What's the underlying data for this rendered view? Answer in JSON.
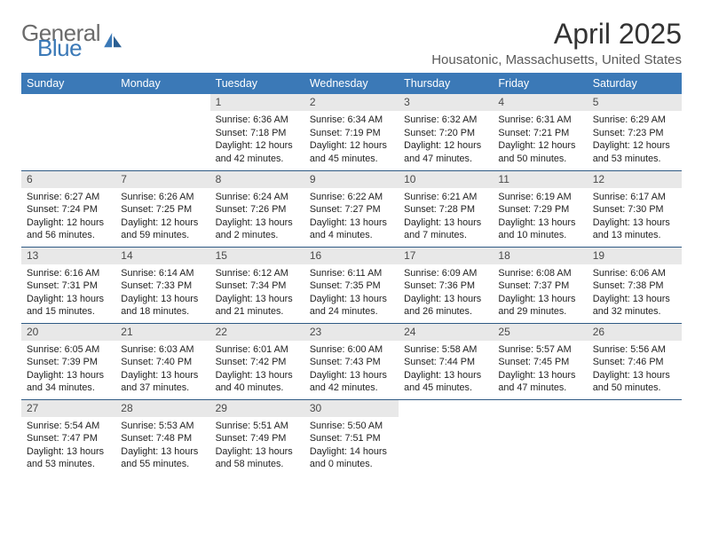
{
  "logo": {
    "text_top": "General",
    "text_bottom": "Blue",
    "gray": "#6b6b6b",
    "blue": "#3b79b7"
  },
  "title": "April 2025",
  "subtitle": "Housatonic, Massachusetts, United States",
  "colors": {
    "header_bg": "#3b79b7",
    "header_fg": "#ffffff",
    "daybar_bg": "#e8e8e8",
    "rule": "#2f5a84"
  },
  "weekdays": [
    "Sunday",
    "Monday",
    "Tuesday",
    "Wednesday",
    "Thursday",
    "Friday",
    "Saturday"
  ],
  "weeks": [
    [
      null,
      null,
      {
        "n": "1",
        "sr": "6:36 AM",
        "ss": "7:18 PM",
        "dl": "12 hours and 42 minutes."
      },
      {
        "n": "2",
        "sr": "6:34 AM",
        "ss": "7:19 PM",
        "dl": "12 hours and 45 minutes."
      },
      {
        "n": "3",
        "sr": "6:32 AM",
        "ss": "7:20 PM",
        "dl": "12 hours and 47 minutes."
      },
      {
        "n": "4",
        "sr": "6:31 AM",
        "ss": "7:21 PM",
        "dl": "12 hours and 50 minutes."
      },
      {
        "n": "5",
        "sr": "6:29 AM",
        "ss": "7:23 PM",
        "dl": "12 hours and 53 minutes."
      }
    ],
    [
      {
        "n": "6",
        "sr": "6:27 AM",
        "ss": "7:24 PM",
        "dl": "12 hours and 56 minutes."
      },
      {
        "n": "7",
        "sr": "6:26 AM",
        "ss": "7:25 PM",
        "dl": "12 hours and 59 minutes."
      },
      {
        "n": "8",
        "sr": "6:24 AM",
        "ss": "7:26 PM",
        "dl": "13 hours and 2 minutes."
      },
      {
        "n": "9",
        "sr": "6:22 AM",
        "ss": "7:27 PM",
        "dl": "13 hours and 4 minutes."
      },
      {
        "n": "10",
        "sr": "6:21 AM",
        "ss": "7:28 PM",
        "dl": "13 hours and 7 minutes."
      },
      {
        "n": "11",
        "sr": "6:19 AM",
        "ss": "7:29 PM",
        "dl": "13 hours and 10 minutes."
      },
      {
        "n": "12",
        "sr": "6:17 AM",
        "ss": "7:30 PM",
        "dl": "13 hours and 13 minutes."
      }
    ],
    [
      {
        "n": "13",
        "sr": "6:16 AM",
        "ss": "7:31 PM",
        "dl": "13 hours and 15 minutes."
      },
      {
        "n": "14",
        "sr": "6:14 AM",
        "ss": "7:33 PM",
        "dl": "13 hours and 18 minutes."
      },
      {
        "n": "15",
        "sr": "6:12 AM",
        "ss": "7:34 PM",
        "dl": "13 hours and 21 minutes."
      },
      {
        "n": "16",
        "sr": "6:11 AM",
        "ss": "7:35 PM",
        "dl": "13 hours and 24 minutes."
      },
      {
        "n": "17",
        "sr": "6:09 AM",
        "ss": "7:36 PM",
        "dl": "13 hours and 26 minutes."
      },
      {
        "n": "18",
        "sr": "6:08 AM",
        "ss": "7:37 PM",
        "dl": "13 hours and 29 minutes."
      },
      {
        "n": "19",
        "sr": "6:06 AM",
        "ss": "7:38 PM",
        "dl": "13 hours and 32 minutes."
      }
    ],
    [
      {
        "n": "20",
        "sr": "6:05 AM",
        "ss": "7:39 PM",
        "dl": "13 hours and 34 minutes."
      },
      {
        "n": "21",
        "sr": "6:03 AM",
        "ss": "7:40 PM",
        "dl": "13 hours and 37 minutes."
      },
      {
        "n": "22",
        "sr": "6:01 AM",
        "ss": "7:42 PM",
        "dl": "13 hours and 40 minutes."
      },
      {
        "n": "23",
        "sr": "6:00 AM",
        "ss": "7:43 PM",
        "dl": "13 hours and 42 minutes."
      },
      {
        "n": "24",
        "sr": "5:58 AM",
        "ss": "7:44 PM",
        "dl": "13 hours and 45 minutes."
      },
      {
        "n": "25",
        "sr": "5:57 AM",
        "ss": "7:45 PM",
        "dl": "13 hours and 47 minutes."
      },
      {
        "n": "26",
        "sr": "5:56 AM",
        "ss": "7:46 PM",
        "dl": "13 hours and 50 minutes."
      }
    ],
    [
      {
        "n": "27",
        "sr": "5:54 AM",
        "ss": "7:47 PM",
        "dl": "13 hours and 53 minutes."
      },
      {
        "n": "28",
        "sr": "5:53 AM",
        "ss": "7:48 PM",
        "dl": "13 hours and 55 minutes."
      },
      {
        "n": "29",
        "sr": "5:51 AM",
        "ss": "7:49 PM",
        "dl": "13 hours and 58 minutes."
      },
      {
        "n": "30",
        "sr": "5:50 AM",
        "ss": "7:51 PM",
        "dl": "14 hours and 0 minutes."
      },
      null,
      null,
      null
    ]
  ],
  "labels": {
    "sunrise": "Sunrise:",
    "sunset": "Sunset:",
    "daylight": "Daylight:"
  }
}
